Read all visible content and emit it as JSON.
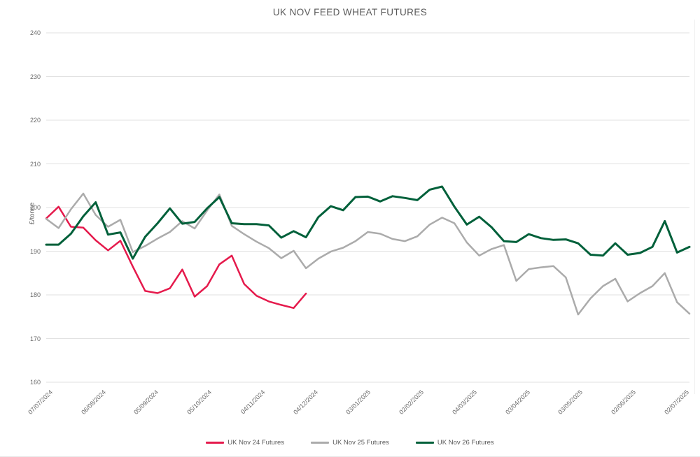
{
  "header": {
    "title": "UK NOV FEED WHEAT FUTURES"
  },
  "chart_data": {
    "type": "line",
    "title": "UK NOV FEED WHEAT FUTURES",
    "xlabel": "",
    "ylabel": "£/tonne",
    "ylim": [
      160,
      240
    ],
    "y_tick_step": 10,
    "grid": "horizontal-only",
    "legend_position": "bottom-center",
    "x_unit": "weeks since 07/07/2024",
    "x_tick_labels": [
      {
        "label": "07/07/2024",
        "week": 0
      },
      {
        "label": "06/08/2024",
        "week": 4.286
      },
      {
        "label": "05/09/2024",
        "week": 8.571
      },
      {
        "label": "05/10/2024",
        "week": 12.857
      },
      {
        "label": "04/11/2024",
        "week": 17.143
      },
      {
        "label": "04/12/2024",
        "week": 21.429
      },
      {
        "label": "03/01/2025",
        "week": 25.714
      },
      {
        "label": "02/02/2025",
        "week": 30
      },
      {
        "label": "04/03/2025",
        "week": 34.286
      },
      {
        "label": "03/04/2025",
        "week": 38.571
      },
      {
        "label": "03/05/2025",
        "week": 42.857
      },
      {
        "label": "02/06/2025",
        "week": 47.143
      },
      {
        "label": "02/07/2025",
        "week": 51.429
      }
    ],
    "series": [
      {
        "name": "UK Nov 24 Futures",
        "color": "#e51a4c",
        "stroke_width": 2.5,
        "start_week": 0,
        "values": [
          197.5,
          200.2,
          195.6,
          195.4,
          192.5,
          190.2,
          192.4,
          186.5,
          180.9,
          180.4,
          181.5,
          185.8,
          179.6,
          182.0,
          187.0,
          189.0,
          182.5,
          179.8,
          178.5,
          177.7,
          177.0,
          180.3
        ]
      },
      {
        "name": "UK Nov 25 Futures",
        "color": "#ababab",
        "stroke_width": 2.5,
        "start_week": 0,
        "values": [
          197.4,
          195.3,
          199.6,
          203.2,
          198.3,
          195.6,
          197.2,
          189.8,
          191.2,
          192.9,
          194.4,
          196.9,
          195.2,
          199.3,
          203.0,
          195.8,
          193.9,
          192.2,
          190.7,
          188.4,
          190.1,
          186.1,
          188.3,
          189.9,
          190.8,
          192.3,
          194.4,
          194.0,
          192.8,
          192.3,
          193.4,
          196.1,
          197.7,
          196.4,
          192.0,
          189.0,
          190.5,
          191.4,
          183.2,
          185.9,
          186.3,
          186.6,
          184.0,
          175.5,
          179.2,
          182.0,
          183.7,
          178.5,
          180.4,
          182.0,
          185.0,
          178.3,
          175.7
        ]
      },
      {
        "name": "UK Nov 26 Futures",
        "color": "#00603a",
        "stroke_width": 3,
        "start_week": 0,
        "values": [
          191.5,
          191.5,
          194.0,
          198.0,
          201.2,
          193.8,
          194.3,
          188.3,
          193.3,
          196.4,
          199.8,
          196.3,
          196.7,
          199.8,
          202.4,
          196.4,
          196.2,
          196.2,
          195.9,
          193.1,
          194.6,
          193.2,
          197.8,
          200.3,
          199.4,
          202.4,
          202.5,
          201.4,
          202.6,
          202.2,
          201.7,
          204.1,
          204.8,
          200.2,
          196.1,
          197.9,
          195.5,
          192.3,
          192.1,
          193.9,
          193.0,
          192.6,
          192.7,
          191.8,
          189.2,
          189.0,
          191.8,
          189.2,
          189.6,
          191.0,
          196.9,
          189.7,
          191.0
        ]
      }
    ],
    "layout": {
      "plot_left": 66,
      "plot_right": 985,
      "plot_top": 47,
      "plot_bottom": 547,
      "gridline_color": "#e2e2e2",
      "background": "#ffffff"
    }
  }
}
